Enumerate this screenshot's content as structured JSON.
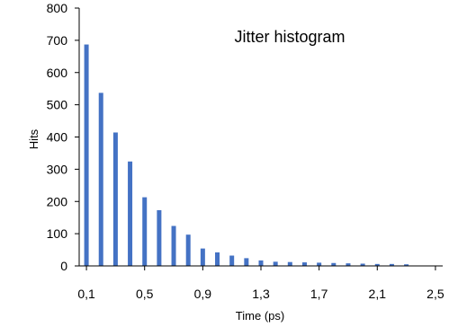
{
  "chart_data": {
    "type": "bar",
    "title": "Jitter histogram",
    "xlabel": "Time (ps)",
    "ylabel": "Hits",
    "x_tick_labels": [
      "0,1",
      "0,5",
      "0,9",
      "1,3",
      "1,7",
      "2,1",
      "2,5"
    ],
    "y_ticks": [
      0,
      100,
      200,
      300,
      400,
      500,
      600,
      700,
      800
    ],
    "ylim": [
      0,
      800
    ],
    "xlim": [
      0.05,
      2.55
    ],
    "grid": false,
    "legend": "none",
    "bar_color": "#4472c4",
    "x": [
      0.1,
      0.2,
      0.3,
      0.4,
      0.5,
      0.6,
      0.7,
      0.8,
      0.9,
      1.0,
      1.1,
      1.2,
      1.3,
      1.4,
      1.5,
      1.6,
      1.7,
      1.8,
      1.9,
      2.0,
      2.1,
      2.2,
      2.3,
      2.4,
      2.5
    ],
    "values": [
      687,
      537,
      414,
      324,
      213,
      173,
      124,
      97,
      54,
      42,
      32,
      24,
      17,
      13,
      12,
      11,
      10,
      9,
      8,
      7,
      6,
      6,
      5,
      0,
      0
    ]
  }
}
